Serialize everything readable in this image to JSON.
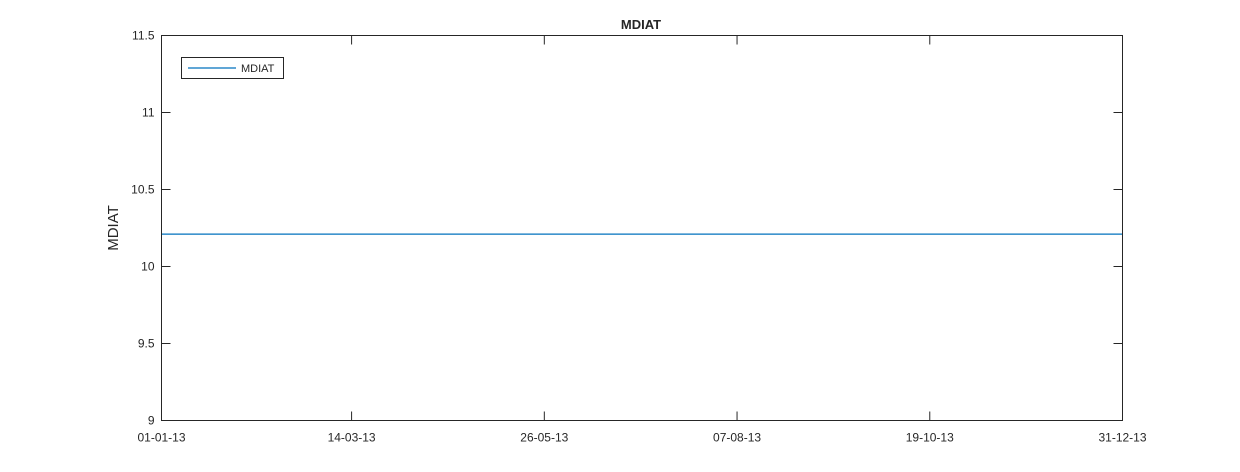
{
  "chart_data": {
    "type": "line",
    "title": "MDIAT",
    "xlabel": "",
    "ylabel": "MDIAT",
    "x_tick_labels": [
      "01-01-13",
      "14-03-13",
      "26-05-13",
      "07-08-13",
      "19-10-13",
      "31-12-13"
    ],
    "y_tick_labels": [
      "9",
      "9.5",
      "10",
      "10.5",
      "11",
      "11.5"
    ],
    "x_ticks": [
      "2013-01-01",
      "2013-03-14",
      "2013-05-26",
      "2013-08-07",
      "2013-10-19",
      "2013-12-31"
    ],
    "y_ticks": [
      9,
      9.5,
      10,
      10.5,
      11,
      11.5
    ],
    "xlim": [
      "2013-01-01",
      "2013-12-31"
    ],
    "ylim": [
      9,
      11.5
    ],
    "grid": false,
    "legend_position": "top-left",
    "series": [
      {
        "name": "MDIAT",
        "color": "#0072BD",
        "x": [
          "2013-01-01",
          "2013-12-31"
        ],
        "y": [
          10.21,
          10.21
        ]
      }
    ]
  }
}
